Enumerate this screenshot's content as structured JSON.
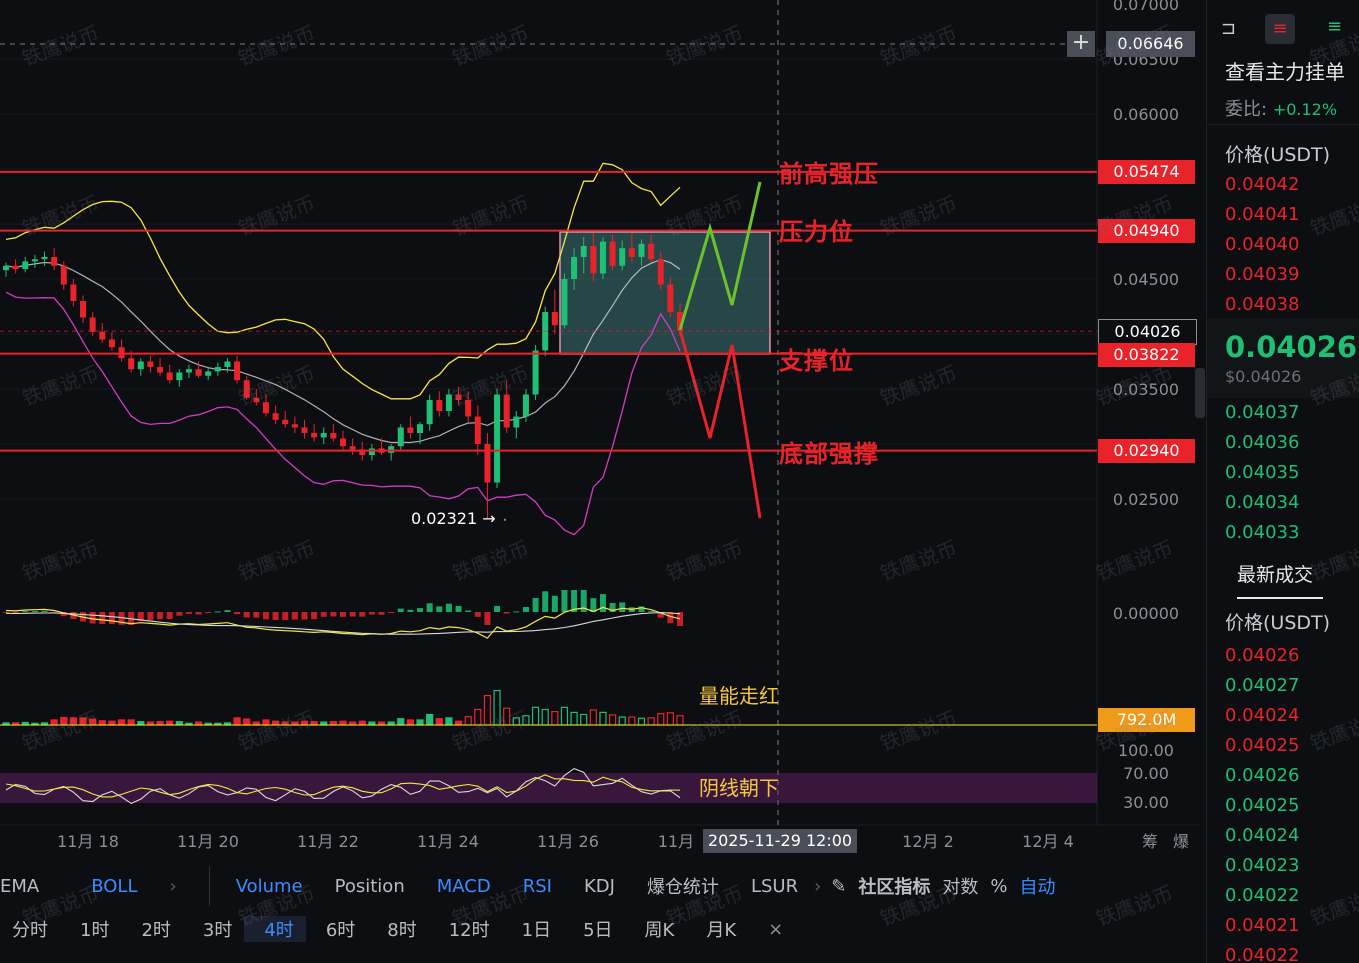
{
  "price_axis": [
    "0.07000",
    "0.06500",
    "0.06000",
    "0.05474",
    "0.04940",
    "0.04500",
    "0.04026",
    "0.03822",
    "0.03500",
    "0.02940",
    "0.02500",
    "0.00000",
    "100.00",
    "70.00",
    "30.00"
  ],
  "crosshair_price": "0.06646",
  "date_axis": [
    "11月 18",
    "11月 20",
    "11月 22",
    "11月 24",
    "11月 26",
    "11月",
    "12月 2",
    "12月 4"
  ],
  "crosshair_date": "2025-11-29 12:00",
  "axis_extra": [
    "筹",
    "爆"
  ],
  "levels": [
    {
      "price": "0.05474",
      "label": "前高强压",
      "color": "#e8232a"
    },
    {
      "price": "0.04940",
      "label": "压力位",
      "color": "#e8232a"
    },
    {
      "price": "0.03822",
      "label": "支撑位",
      "color": "#e8232a"
    },
    {
      "price": "0.02940",
      "label": "底部强撑",
      "color": "#e8232a"
    }
  ],
  "current_price_tag": "0.04026",
  "low_marker": "0.02321",
  "volume_tag": "792.0M",
  "volume_note": "量能走红",
  "rsi_note": "阴线朝下",
  "watermark": "铁鹰说币",
  "colors": {
    "up": "#1fbf75",
    "down": "#e8232a",
    "ma_white": "#d9d9d9",
    "boll_upper": "#f5e642",
    "boll_lower": "#d13cc4",
    "accent": "#3b8cff",
    "volume_tag": "#f09a1a"
  },
  "indicator_tabs": [
    "EMA",
    "BOLL",
    "Volume",
    "Position",
    "MACD",
    "RSI",
    "KDJ",
    "爆仓统计",
    "LSUR",
    "社区指标",
    "对数",
    "%",
    "自动"
  ],
  "timeframes": [
    "分时",
    "1时",
    "2时",
    "3时",
    "4时",
    "6时",
    "8时",
    "12时",
    "1日",
    "5日",
    "周K",
    "月K"
  ],
  "active_timeframe": "4时",
  "right_panel": {
    "title": "查看主力挂单",
    "ratio_label": "委比:",
    "ratio_value": "+0.12%",
    "price_header": "价格(USDT)",
    "asks": [
      "0.04042",
      "0.04041",
      "0.04040",
      "0.04039",
      "0.04038"
    ],
    "last_price": "0.04026",
    "last_price_usd": "$0.04026",
    "bids": [
      "0.04037",
      "0.04036",
      "0.04035",
      "0.04034",
      "0.04033"
    ],
    "trades_title": "最新成交",
    "trades_header": "价格(USDT)",
    "trades": [
      {
        "p": "0.04026",
        "side": "sell"
      },
      {
        "p": "0.04027",
        "side": "buy"
      },
      {
        "p": "0.04024",
        "side": "sell"
      },
      {
        "p": "0.04025",
        "side": "sell"
      },
      {
        "p": "0.04026",
        "side": "buy"
      },
      {
        "p": "0.04025",
        "side": "buy"
      },
      {
        "p": "0.04024",
        "side": "buy"
      },
      {
        "p": "0.04023",
        "side": "buy"
      },
      {
        "p": "0.04022",
        "side": "buy"
      },
      {
        "p": "0.04021",
        "side": "sell"
      },
      {
        "p": "0.04022",
        "side": "sell"
      }
    ]
  },
  "chart_data": {
    "type": "candlestick",
    "title": "",
    "y_range": [
      0.021,
      0.07
    ],
    "x_range": [
      "11月 17",
      "12月 5"
    ],
    "candles": [
      [
        0.0458,
        0.0465,
        0.0452,
        0.0462
      ],
      [
        0.0462,
        0.0468,
        0.0455,
        0.0459
      ],
      [
        0.0459,
        0.047,
        0.0456,
        0.0466
      ],
      [
        0.0466,
        0.0472,
        0.046,
        0.0468
      ],
      [
        0.0468,
        0.0475,
        0.0462,
        0.047
      ],
      [
        0.047,
        0.0478,
        0.0458,
        0.0462
      ],
      [
        0.0462,
        0.0466,
        0.044,
        0.0445
      ],
      [
        0.0445,
        0.045,
        0.0425,
        0.043
      ],
      [
        0.043,
        0.0435,
        0.041,
        0.0415
      ],
      [
        0.0415,
        0.042,
        0.0398,
        0.0402
      ],
      [
        0.0402,
        0.041,
        0.0392,
        0.0395
      ],
      [
        0.0395,
        0.0402,
        0.0385,
        0.0388
      ],
      [
        0.0388,
        0.0395,
        0.0375,
        0.0378
      ],
      [
        0.0378,
        0.0385,
        0.0365,
        0.0368
      ],
      [
        0.0368,
        0.0378,
        0.0362,
        0.0375
      ],
      [
        0.0375,
        0.038,
        0.0365,
        0.037
      ],
      [
        0.037,
        0.0378,
        0.0362,
        0.0365
      ],
      [
        0.0365,
        0.0372,
        0.0355,
        0.0358
      ],
      [
        0.0358,
        0.0368,
        0.0352,
        0.0365
      ],
      [
        0.0365,
        0.0372,
        0.036,
        0.0368
      ],
      [
        0.0368,
        0.0375,
        0.036,
        0.0362
      ],
      [
        0.0362,
        0.037,
        0.0358,
        0.0366
      ],
      [
        0.0366,
        0.0374,
        0.0362,
        0.037
      ],
      [
        0.037,
        0.0378,
        0.0365,
        0.0375
      ],
      [
        0.0375,
        0.038,
        0.0355,
        0.0358
      ],
      [
        0.0358,
        0.0362,
        0.034,
        0.0342
      ],
      [
        0.0342,
        0.035,
        0.0335,
        0.0338
      ],
      [
        0.0338,
        0.0345,
        0.0325,
        0.0328
      ],
      [
        0.0328,
        0.0335,
        0.0318,
        0.0322
      ],
      [
        0.0322,
        0.033,
        0.0315,
        0.0318
      ],
      [
        0.0318,
        0.0325,
        0.031,
        0.0315
      ],
      [
        0.0315,
        0.0322,
        0.0305,
        0.031
      ],
      [
        0.031,
        0.0318,
        0.0302,
        0.0306
      ],
      [
        0.0306,
        0.0315,
        0.03,
        0.031
      ],
      [
        0.031,
        0.0318,
        0.0302,
        0.0305
      ],
      [
        0.0305,
        0.0312,
        0.0295,
        0.0298
      ],
      [
        0.0298,
        0.0305,
        0.029,
        0.0295
      ],
      [
        0.0295,
        0.0302,
        0.0285,
        0.029
      ],
      [
        0.029,
        0.03,
        0.0285,
        0.0296
      ],
      [
        0.0296,
        0.0305,
        0.029,
        0.0292
      ],
      [
        0.0292,
        0.03,
        0.0285,
        0.0298
      ],
      [
        0.0298,
        0.0318,
        0.0295,
        0.0315
      ],
      [
        0.0315,
        0.0325,
        0.0305,
        0.031
      ],
      [
        0.031,
        0.032,
        0.03,
        0.0318
      ],
      [
        0.0318,
        0.0345,
        0.0312,
        0.034
      ],
      [
        0.034,
        0.0348,
        0.0325,
        0.033
      ],
      [
        0.033,
        0.035,
        0.0325,
        0.0345
      ],
      [
        0.0345,
        0.0352,
        0.0335,
        0.034
      ],
      [
        0.034,
        0.0348,
        0.032,
        0.0325
      ],
      [
        0.0325,
        0.0335,
        0.029,
        0.03
      ],
      [
        0.03,
        0.031,
        0.0232,
        0.0265
      ],
      [
        0.0265,
        0.035,
        0.026,
        0.0345
      ],
      [
        0.0345,
        0.0358,
        0.031,
        0.0315
      ],
      [
        0.0315,
        0.033,
        0.0305,
        0.0325
      ],
      [
        0.0325,
        0.035,
        0.032,
        0.0345
      ],
      [
        0.0345,
        0.039,
        0.034,
        0.0385
      ],
      [
        0.0385,
        0.0425,
        0.038,
        0.042
      ],
      [
        0.042,
        0.044,
        0.04,
        0.0408
      ],
      [
        0.0408,
        0.0455,
        0.0405,
        0.045
      ],
      [
        0.045,
        0.0478,
        0.044,
        0.047
      ],
      [
        0.047,
        0.0488,
        0.0455,
        0.048
      ],
      [
        0.048,
        0.0492,
        0.0448,
        0.0455
      ],
      [
        0.0455,
        0.0488,
        0.045,
        0.0484
      ],
      [
        0.0484,
        0.049,
        0.0458,
        0.0462
      ],
      [
        0.0462,
        0.0485,
        0.0458,
        0.0478
      ],
      [
        0.0478,
        0.0492,
        0.0465,
        0.047
      ],
      [
        0.047,
        0.0486,
        0.0462,
        0.0482
      ],
      [
        0.0482,
        0.049,
        0.0465,
        0.0468
      ],
      [
        0.0468,
        0.0475,
        0.044,
        0.0445
      ],
      [
        0.0445,
        0.0452,
        0.0415,
        0.042
      ],
      [
        0.042,
        0.0428,
        0.0398,
        0.0403
      ]
    ]
  }
}
